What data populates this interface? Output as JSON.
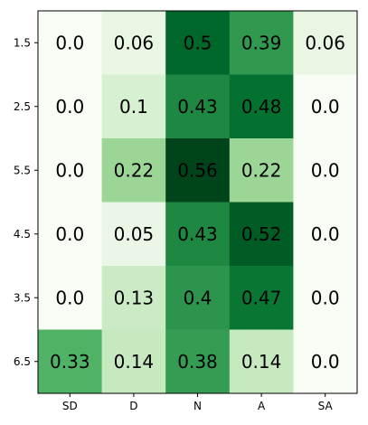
{
  "chart_data": {
    "type": "heatmap",
    "title": "",
    "xlabel": "",
    "ylabel": "",
    "x_categories": [
      "SD",
      "D",
      "N",
      "A",
      "SA"
    ],
    "y_categories": [
      "1.5",
      "2.5",
      "5.5",
      "4.5",
      "3.5",
      "6.5"
    ],
    "values": [
      [
        0.0,
        0.06,
        0.5,
        0.39,
        0.06
      ],
      [
        0.0,
        0.1,
        0.43,
        0.48,
        0.0
      ],
      [
        0.0,
        0.22,
        0.56,
        0.22,
        0.0
      ],
      [
        0.0,
        0.05,
        0.43,
        0.52,
        0.0
      ],
      [
        0.0,
        0.13,
        0.4,
        0.47,
        0.0
      ],
      [
        0.33,
        0.14,
        0.38,
        0.14,
        0.0
      ]
    ],
    "cell_labels": [
      [
        "0.0",
        "0.06",
        "0.5",
        "0.39",
        "0.06"
      ],
      [
        "0.0",
        "0.1",
        "0.43",
        "0.48",
        "0.0"
      ],
      [
        "0.0",
        "0.22",
        "0.56",
        "0.22",
        "0.0"
      ],
      [
        "0.0",
        "0.05",
        "0.43",
        "0.52",
        "0.0"
      ],
      [
        "0.0",
        "0.13",
        "0.4",
        "0.47",
        "0.0"
      ],
      [
        "0.33",
        "0.14",
        "0.38",
        "0.14",
        "0.0"
      ]
    ],
    "colormap": "Greens",
    "vmin": 0.0,
    "vmax": 0.56,
    "grid": false,
    "legend": "none"
  }
}
